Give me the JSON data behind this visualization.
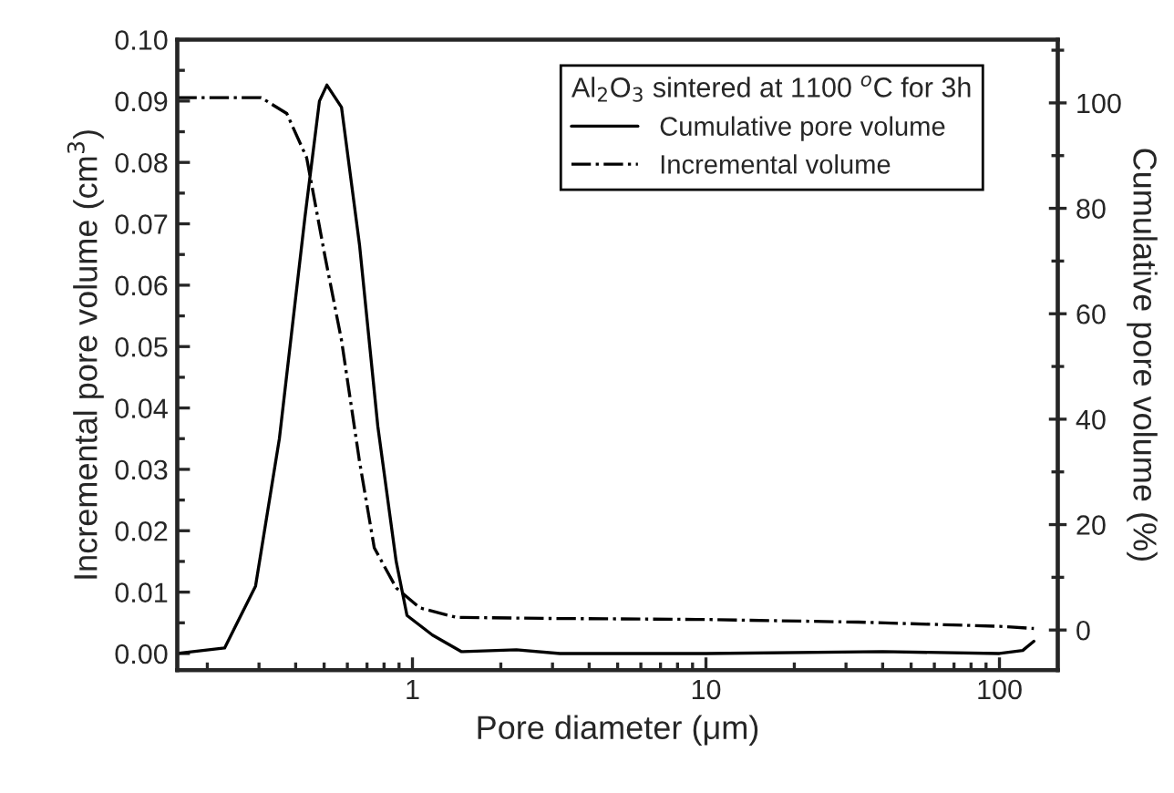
{
  "chart_data": {
    "type": "line",
    "xlabel": "Pore diameter (μm)",
    "ylabel": "Incremental pore volume (cm$^{3}$)",
    "y2label": "Cumulative pore volume (%)",
    "legend_title": "Al$_{2}$O$_{3}$ sintered at 1100 $^{o}$C for 3h",
    "log": "x",
    "grid": false,
    "legend": "top right",
    "xlim": [
      0.158,
      158
    ],
    "xticks": [
      1,
      10,
      100
    ],
    "ylim": [
      -0.0027,
      0.1
    ],
    "yticks": [
      {
        "value": 0,
        "label": "0.00"
      },
      {
        "value": 0.01,
        "label": "0.01"
      },
      {
        "value": 0.02,
        "label": "0.02"
      },
      {
        "value": 0.03,
        "label": "0.03"
      },
      {
        "value": 0.04,
        "label": "0.04"
      },
      {
        "value": 0.05,
        "label": "0.05"
      },
      {
        "value": 0.06,
        "label": "0.06"
      },
      {
        "value": 0.07,
        "label": "0.07"
      },
      {
        "value": 0.08,
        "label": "0.08"
      },
      {
        "value": 0.09,
        "label": "0.09"
      },
      {
        "value": 0.1,
        "label": "0.10"
      }
    ],
    "y2lim": [
      -7.6,
      112
    ],
    "y2ticks": [
      0,
      20,
      40,
      60,
      80,
      100
    ],
    "series": [
      {
        "name": "Cumulative pore volume",
        "color": "#000000",
        "line_style": "solid",
        "x": [
          0.158,
          0.229,
          0.292,
          0.352,
          0.43,
          0.482,
          0.511,
          0.573,
          0.66,
          0.762,
          0.88,
          0.958,
          1.17,
          1.47,
          2.26,
          3.18,
          10,
          40,
          100,
          120,
          131
        ],
        "values": [
          0,
          0.0009,
          0.011,
          0.035,
          0.071,
          0.09,
          0.0926,
          0.089,
          0.0666,
          0.037,
          0.015,
          0.0062,
          0.003,
          0.0003,
          0.0006,
          0,
          0,
          0.0003,
          0,
          0.0005,
          0.002
        ]
      },
      {
        "name": "Incremental volume",
        "color": "#000000",
        "line_style": "dashdot",
        "axis": "y2",
        "x": [
          0.158,
          0.305,
          0.373,
          0.436,
          0.503,
          0.573,
          0.66,
          0.741,
          0.88,
          1.06,
          1.41,
          2.88,
          10,
          33,
          100,
          131
        ],
        "values": [
          101,
          101,
          98,
          89.6,
          71,
          55,
          32,
          15.6,
          8,
          4.2,
          2.4,
          2.2,
          2,
          1.5,
          0.7,
          0.3
        ]
      }
    ]
  }
}
